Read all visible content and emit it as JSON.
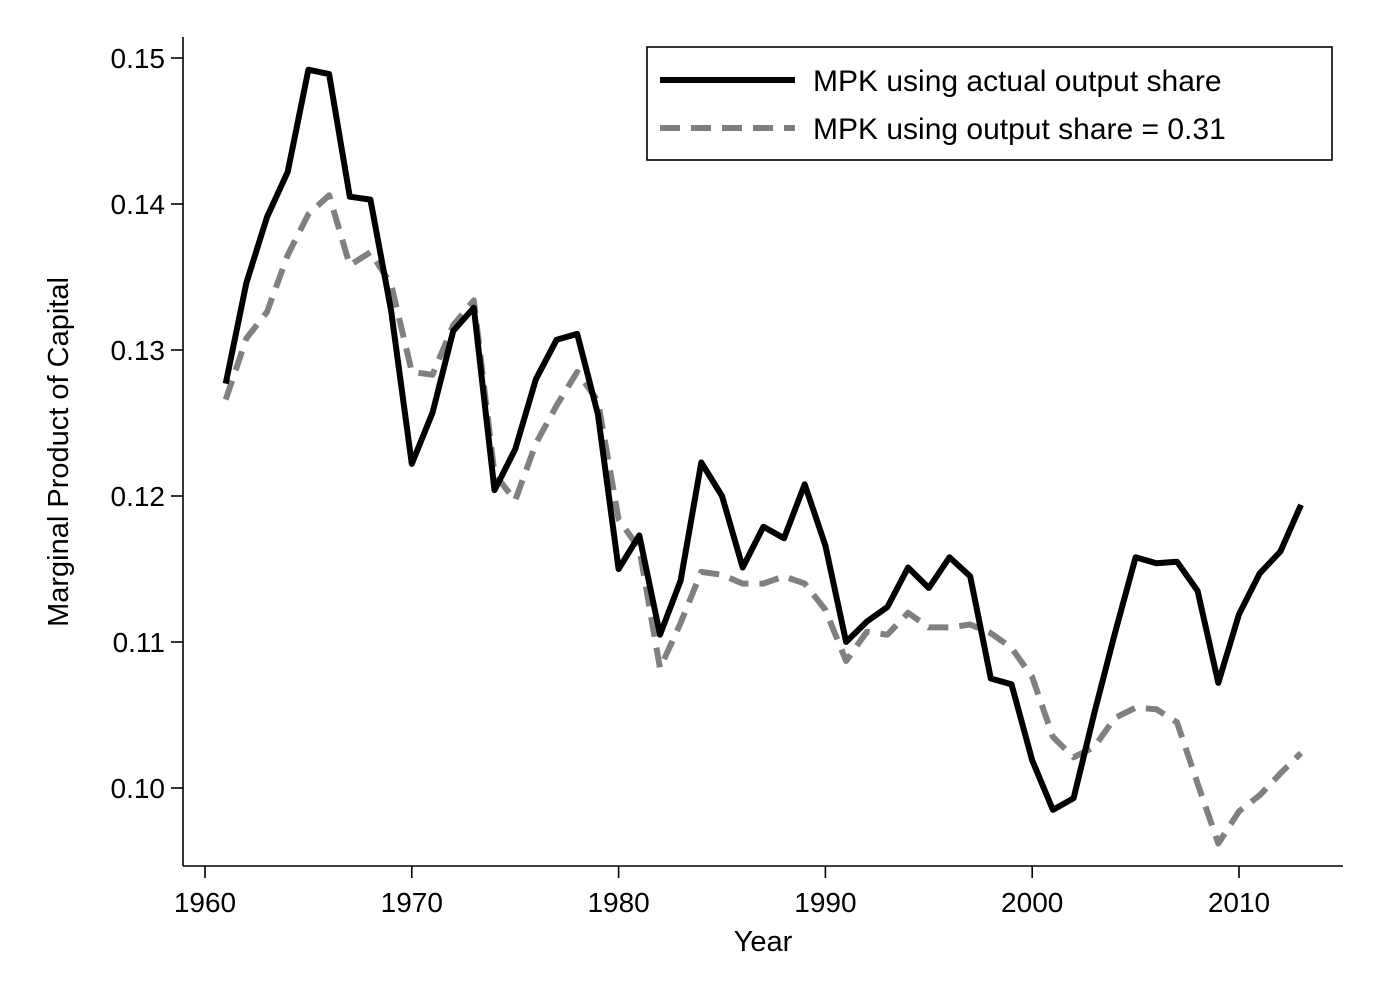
{
  "chart_data": {
    "type": "line",
    "title": "",
    "xlabel": "Year",
    "ylabel": "Marginal Product of Capital",
    "xlim": [
      1959,
      2015
    ],
    "ylim": [
      0.0947,
      0.1515
    ],
    "x_ticks": [
      1960,
      1970,
      1980,
      1990,
      2000,
      2010
    ],
    "x_tick_labels": [
      "1960",
      "1970",
      "1980",
      "1990",
      "2000",
      "2010"
    ],
    "y_ticks": [
      0.1,
      0.11,
      0.12,
      0.13,
      0.14,
      0.15
    ],
    "y_tick_labels": [
      "0.10",
      "0.11",
      "0.12",
      "0.13",
      "0.14",
      "0.15"
    ],
    "grid": false,
    "legend_position": "top-right",
    "x": [
      1961,
      1962,
      1963,
      1964,
      1965,
      1966,
      1967,
      1968,
      1969,
      1970,
      1971,
      1972,
      1973,
      1974,
      1975,
      1976,
      1977,
      1978,
      1979,
      1980,
      1981,
      1982,
      1983,
      1984,
      1985,
      1986,
      1987,
      1988,
      1989,
      1990,
      1991,
      1992,
      1993,
      1994,
      1995,
      1996,
      1997,
      1998,
      1999,
      2000,
      2001,
      2002,
      2003,
      2004,
      2005,
      2006,
      2007,
      2008,
      2009,
      2010,
      2011,
      2012,
      2013
    ],
    "series": [
      {
        "name": "MPK using actual output share",
        "color": "#000000",
        "style": "solid",
        "values": [
          0.1277,
          0.1346,
          0.1391,
          0.1422,
          0.1492,
          0.1489,
          0.1405,
          0.1403,
          0.1327,
          0.1222,
          0.1257,
          0.1313,
          0.1329,
          0.1204,
          0.1232,
          0.128,
          0.1307,
          0.1311,
          0.1256,
          0.115,
          0.1173,
          0.1105,
          0.1142,
          0.1223,
          0.12,
          0.1151,
          0.1179,
          0.1171,
          0.1208,
          0.1166,
          0.11,
          0.1114,
          0.1124,
          0.1151,
          0.1137,
          0.1158,
          0.1145,
          0.1075,
          0.1071,
          0.1019,
          0.0985,
          0.0993,
          0.1051,
          0.1106,
          0.1158,
          0.1154,
          0.1155,
          0.1135,
          0.1072,
          0.1119,
          0.1147,
          0.1162,
          0.1194
        ]
      },
      {
        "name": "MPK using output share = 0.31",
        "color": "#808080",
        "style": "dashed",
        "values": [
          0.1266,
          0.1308,
          0.1326,
          0.1365,
          0.1393,
          0.1406,
          0.1358,
          0.1367,
          0.1345,
          0.1285,
          0.1283,
          0.1317,
          0.1334,
          0.1215,
          0.1197,
          0.1236,
          0.1262,
          0.1285,
          0.1265,
          0.1184,
          0.1164,
          0.1082,
          0.1113,
          0.1148,
          0.1146,
          0.114,
          0.114,
          0.1145,
          0.114,
          0.1122,
          0.1087,
          0.1107,
          0.1105,
          0.112,
          0.111,
          0.111,
          0.1112,
          0.1106,
          0.1096,
          0.1076,
          0.1035,
          0.1021,
          0.1028,
          0.1048,
          0.1055,
          0.1054,
          0.1045,
          0.1003,
          0.0962,
          0.0984,
          0.0995,
          0.101,
          0.1024
        ]
      }
    ]
  }
}
